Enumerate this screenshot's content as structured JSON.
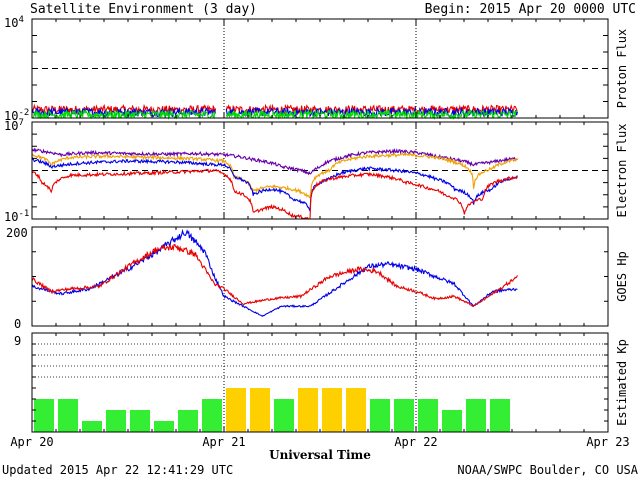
{
  "header": {
    "title": "Satellite Environment (3 day)",
    "begin": "Begin:  2015 Apr 20 0000 UTC"
  },
  "footer": {
    "updated": "Updated 2015 Apr 22 12:41:29 UTC",
    "credit": "NOAA/SWPC Boulder, CO USA",
    "xlabel": "Universal Time"
  },
  "x_axis": {
    "ticks": [
      "Apr 20",
      "Apr 21",
      "Apr 22",
      "Apr 23"
    ],
    "range_days": [
      0,
      3
    ],
    "data_end_day": 2.53
  },
  "colors": {
    "red": "#e80000",
    "blue": "#0000e8",
    "green": "#00dd00",
    "purple": "#6600aa",
    "orange": "#f0a000",
    "kp_green": "#33ee33",
    "kp_yellow": "#ffd000"
  },
  "chart_data": [
    {
      "type": "line",
      "name": "proton-flux",
      "ylabel": "Proton Flux",
      "scale": "log",
      "ylim": [
        0.01,
        10000
      ],
      "y_tick_labels": [
        {
          "base": "10",
          "exp": "4"
        },
        {
          "base": "10",
          "exp": "-2"
        }
      ],
      "reference_level": 10,
      "series": [
        {
          "color": "red",
          "level": 0.032
        },
        {
          "color": "blue",
          "level": 0.022
        },
        {
          "color": "green",
          "level": 0.016
        }
      ]
    },
    {
      "type": "line",
      "name": "electron-flux",
      "ylabel": "Electron Flux",
      "scale": "log",
      "ylim": [
        0.1,
        10000000
      ],
      "y_tick_labels": [
        {
          "base": "10",
          "exp": "7"
        },
        {
          "base": "10",
          "exp": "-1"
        }
      ],
      "reference_level": 1000,
      "series": [
        {
          "color": "purple",
          "points": [
            [
              0,
              50000
            ],
            [
              0.15,
              20000
            ],
            [
              0.3,
              30000
            ],
            [
              0.5,
              25000
            ],
            [
              0.7,
              22000
            ],
            [
              0.85,
              25000
            ],
            [
              1.0,
              20000
            ],
            [
              1.15,
              8000
            ],
            [
              1.3,
              2000
            ],
            [
              1.45,
              500
            ],
            [
              1.5,
              2000
            ],
            [
              1.6,
              10000
            ],
            [
              1.75,
              30000
            ],
            [
              1.9,
              40000
            ],
            [
              2.0,
              30000
            ],
            [
              2.1,
              15000
            ],
            [
              2.2,
              8000
            ],
            [
              2.3,
              3000
            ],
            [
              2.4,
              5000
            ],
            [
              2.53,
              10000
            ]
          ]
        },
        {
          "color": "orange",
          "points": [
            [
              0,
              20000
            ],
            [
              0.1,
              3000
            ],
            [
              0.2,
              12000
            ],
            [
              0.4,
              15000
            ],
            [
              0.6,
              12000
            ],
            [
              0.8,
              10000
            ],
            [
              1.0,
              6000
            ],
            [
              1.05,
              300
            ],
            [
              1.15,
              20
            ],
            [
              1.25,
              50
            ],
            [
              1.35,
              30
            ],
            [
              1.45,
              5
            ],
            [
              1.55,
              1000
            ],
            [
              1.75,
              15000
            ],
            [
              1.95,
              20000
            ],
            [
              2.1,
              12000
            ],
            [
              2.2,
              5000
            ],
            [
              2.3,
              40
            ],
            [
              2.4,
              1500
            ],
            [
              2.53,
              8000
            ]
          ]
        },
        {
          "color": "blue",
          "points": [
            [
              0,
              8000
            ],
            [
              0.1,
              2000
            ],
            [
              0.25,
              4000
            ],
            [
              0.5,
              6000
            ],
            [
              0.75,
              5000
            ],
            [
              0.95,
              3000
            ],
            [
              1.0,
              3000
            ],
            [
              1.05,
              300
            ],
            [
              1.15,
              10
            ],
            [
              1.25,
              30
            ],
            [
              1.35,
              5
            ],
            [
              1.45,
              0.5
            ],
            [
              1.55,
              200
            ],
            [
              1.75,
              1500
            ],
            [
              1.95,
              800
            ],
            [
              2.1,
              200
            ],
            [
              2.2,
              30
            ],
            [
              2.3,
              2
            ],
            [
              2.4,
              30
            ],
            [
              2.53,
              300
            ]
          ]
        },
        {
          "color": "red",
          "points": [
            [
              0,
              800
            ],
            [
              0.05,
              100
            ],
            [
              0.1,
              15
            ],
            [
              0.2,
              400
            ],
            [
              0.4,
              500
            ],
            [
              0.6,
              600
            ],
            [
              0.8,
              800
            ],
            [
              0.95,
              1000
            ],
            [
              1.0,
              500
            ],
            [
              1.05,
              20
            ],
            [
              1.15,
              0.3
            ],
            [
              1.25,
              1
            ],
            [
              1.35,
              0.2
            ],
            [
              1.45,
              0.1
            ],
            [
              1.55,
              200
            ],
            [
              1.75,
              500
            ],
            [
              1.95,
              100
            ],
            [
              2.05,
              40
            ],
            [
              2.15,
              10
            ],
            [
              2.25,
              0.2
            ],
            [
              2.35,
              5
            ],
            [
              2.53,
              300
            ]
          ]
        }
      ]
    },
    {
      "type": "line",
      "name": "goes-hp",
      "ylabel": "GOES Hp",
      "scale": "linear",
      "ylim": [
        0,
        200
      ],
      "y_tick_labels": [
        "200",
        "0"
      ],
      "series": [
        {
          "color": "blue",
          "points": [
            [
              0,
              80
            ],
            [
              0.15,
              65
            ],
            [
              0.3,
              75
            ],
            [
              0.5,
              115
            ],
            [
              0.65,
              150
            ],
            [
              0.8,
              190
            ],
            [
              0.9,
              150
            ],
            [
              0.95,
              100
            ],
            [
              1.0,
              60
            ],
            [
              1.1,
              40
            ],
            [
              1.2,
              20
            ],
            [
              1.3,
              40
            ],
            [
              1.45,
              40
            ],
            [
              1.6,
              80
            ],
            [
              1.75,
              120
            ],
            [
              1.85,
              125
            ],
            [
              2.0,
              115
            ],
            [
              2.1,
              100
            ],
            [
              2.2,
              85
            ],
            [
              2.3,
              40
            ],
            [
              2.4,
              70
            ],
            [
              2.53,
              75
            ]
          ]
        },
        {
          "color": "red",
          "points": [
            [
              0,
              95
            ],
            [
              0.1,
              70
            ],
            [
              0.2,
              75
            ],
            [
              0.35,
              80
            ],
            [
              0.5,
              120
            ],
            [
              0.65,
              155
            ],
            [
              0.75,
              160
            ],
            [
              0.85,
              145
            ],
            [
              0.95,
              85
            ],
            [
              1.0,
              75
            ],
            [
              1.1,
              45
            ],
            [
              1.25,
              55
            ],
            [
              1.4,
              60
            ],
            [
              1.55,
              100
            ],
            [
              1.7,
              115
            ],
            [
              1.8,
              110
            ],
            [
              1.9,
              80
            ],
            [
              2.0,
              70
            ],
            [
              2.1,
              55
            ],
            [
              2.2,
              60
            ],
            [
              2.3,
              40
            ],
            [
              2.4,
              65
            ],
            [
              2.53,
              100
            ]
          ]
        }
      ]
    },
    {
      "type": "bar",
      "name": "estimated-kp",
      "ylabel": "Estimated Kp",
      "ylim": [
        0,
        9
      ],
      "y_tick_labels": [
        "9"
      ],
      "bar_width_days": 0.125,
      "values": [
        3,
        3,
        1,
        2,
        2,
        1,
        2,
        3,
        4,
        4,
        3,
        4,
        4,
        4,
        3,
        3,
        3,
        2,
        3,
        3
      ],
      "bar_colors": [
        "kp_green",
        "kp_green",
        "kp_green",
        "kp_green",
        "kp_green",
        "kp_green",
        "kp_green",
        "kp_green",
        "kp_yellow",
        "kp_yellow",
        "kp_green",
        "kp_yellow",
        "kp_yellow",
        "kp_yellow",
        "kp_green",
        "kp_green",
        "kp_green",
        "kp_green",
        "kp_green",
        "kp_green"
      ]
    }
  ]
}
